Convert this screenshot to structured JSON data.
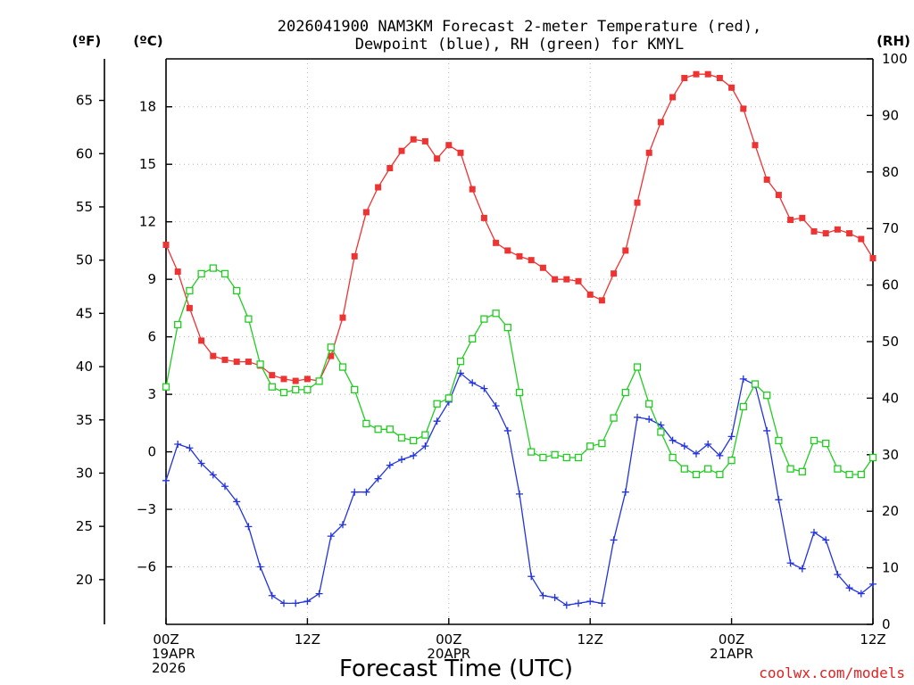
{
  "chart_data": {
    "type": "line",
    "title_line1": "2026041900 NAM3KM Forecast 2-meter Temperature (red),",
    "title_line2": "Dewpoint (blue), RH (green) for KMYL",
    "xlabel": "Forecast Time (UTC)",
    "credit": "coolwx.com/models",
    "units": {
      "fahrenheit": "(ºF)",
      "celsius": "(ºC)",
      "rh": "(RH)"
    },
    "x_unit": "forecast hour",
    "xlim": [
      0,
      60
    ],
    "ylim_celsius": [
      -9,
      20.5
    ],
    "ylim_rh": [
      0,
      100
    ],
    "x_ticks": [
      {
        "x": 0,
        "lines": [
          "00Z",
          "19APR",
          "2026"
        ]
      },
      {
        "x": 12,
        "lines": [
          "12Z"
        ]
      },
      {
        "x": 24,
        "lines": [
          "00Z",
          "20APR"
        ]
      },
      {
        "x": 36,
        "lines": [
          "12Z"
        ]
      },
      {
        "x": 48,
        "lines": [
          "00Z",
          "21APR"
        ]
      },
      {
        "x": 60,
        "lines": [
          "12Z"
        ]
      }
    ],
    "celsius_ticks": [
      -6,
      -3,
      0,
      3,
      6,
      9,
      12,
      15,
      18
    ],
    "celsius_tick_labels": [
      "−6",
      "−3",
      "0",
      "3",
      "6",
      "9",
      "12",
      "15",
      "18"
    ],
    "fahrenheit_ticks": [
      20,
      25,
      30,
      35,
      40,
      45,
      50,
      55,
      60,
      65
    ],
    "fahrenheit_tick_labels": [
      "20",
      "25",
      "30",
      "35",
      "40",
      "45",
      "50",
      "55",
      "60",
      "65"
    ],
    "rh_ticks": [
      0,
      10,
      20,
      30,
      40,
      50,
      60,
      70,
      80,
      90,
      100
    ],
    "rh_tick_labels": [
      "0",
      "10",
      "20",
      "30",
      "40",
      "50",
      "60",
      "70",
      "80",
      "90",
      "100"
    ],
    "series": [
      {
        "name": "2-meter Temperature (°C)",
        "color": "#ee3333",
        "axis": "celsius",
        "marker": "filled-square",
        "x": [
          0,
          1,
          2,
          3,
          4,
          5,
          6,
          7,
          8,
          9,
          10,
          11,
          12,
          13,
          14,
          15,
          16,
          17,
          18,
          19,
          20,
          21,
          22,
          23,
          24,
          25,
          26,
          27,
          28,
          29,
          30,
          31,
          32,
          33,
          34,
          35,
          36,
          37,
          38,
          39,
          40,
          41,
          42,
          43,
          44,
          45,
          46,
          47,
          48,
          49,
          50,
          51,
          52,
          53,
          54,
          55,
          56,
          57,
          58,
          59,
          60
        ],
        "values": [
          10.8,
          9.4,
          7.5,
          5.8,
          5.0,
          4.8,
          4.7,
          4.7,
          4.5,
          4.0,
          3.8,
          3.7,
          3.8,
          3.7,
          5.0,
          7.0,
          10.2,
          12.5,
          13.8,
          14.8,
          15.7,
          16.3,
          16.2,
          15.3,
          16.0,
          15.6,
          13.7,
          12.2,
          10.9,
          10.5,
          10.2,
          10.0,
          9.6,
          9.0,
          9.0,
          8.9,
          8.2,
          7.9,
          9.3,
          10.5,
          13.0,
          15.6,
          17.2,
          18.5,
          19.5,
          19.7,
          19.7,
          19.5,
          19.0,
          17.9,
          16.0,
          14.2,
          13.4,
          12.1,
          12.2,
          11.5,
          11.4,
          11.6,
          11.4,
          11.1,
          10.1
        ]
      },
      {
        "name": "Dewpoint (°C)",
        "color": "#2233dd",
        "axis": "celsius",
        "marker": "plus",
        "x": [
          0,
          1,
          2,
          3,
          4,
          5,
          6,
          7,
          8,
          9,
          10,
          11,
          12,
          13,
          14,
          15,
          16,
          17,
          18,
          19,
          20,
          21,
          22,
          23,
          24,
          25,
          26,
          27,
          28,
          29,
          30,
          31,
          32,
          33,
          34,
          35,
          36,
          37,
          38,
          39,
          40,
          41,
          42,
          43,
          44,
          45,
          46,
          47,
          48,
          49,
          50,
          51,
          52,
          53,
          54,
          55,
          56,
          57,
          58,
          59,
          60
        ],
        "values": [
          -1.5,
          0.4,
          0.2,
          -0.6,
          -1.2,
          -1.8,
          -2.6,
          -3.9,
          -6.0,
          -7.5,
          -7.9,
          -7.9,
          -7.8,
          -7.4,
          -4.4,
          -3.8,
          -2.1,
          -2.1,
          -1.4,
          -0.7,
          -0.4,
          -0.2,
          0.3,
          1.6,
          2.6,
          4.1,
          3.6,
          3.3,
          2.4,
          1.1,
          -2.2,
          -6.5,
          -7.5,
          -7.6,
          -8.0,
          -7.9,
          -7.8,
          -7.9,
          -4.6,
          -2.1,
          1.8,
          1.7,
          1.4,
          0.6,
          0.3,
          -0.1,
          0.4,
          -0.2,
          0.8,
          3.8,
          3.5,
          1.1,
          -2.5,
          -5.8,
          -6.1,
          -4.2,
          -4.6,
          -6.4,
          -7.1,
          -7.4,
          -6.9
        ]
      },
      {
        "name": "RH (%)",
        "color": "#22cc22",
        "axis": "rh",
        "marker": "open-square",
        "x": [
          0,
          1,
          2,
          3,
          4,
          5,
          6,
          7,
          8,
          9,
          10,
          11,
          12,
          13,
          14,
          15,
          16,
          17,
          18,
          19,
          20,
          21,
          22,
          23,
          24,
          25,
          26,
          27,
          28,
          29,
          30,
          31,
          32,
          33,
          34,
          35,
          36,
          37,
          38,
          39,
          40,
          41,
          42,
          43,
          44,
          45,
          46,
          47,
          48,
          49,
          50,
          51,
          52,
          53,
          54,
          55,
          56,
          57,
          58,
          59,
          60
        ],
        "values": [
          42,
          53,
          59,
          62,
          63,
          62,
          59,
          54,
          46,
          42,
          41,
          41.5,
          41.5,
          43,
          49,
          45.5,
          41.5,
          35.5,
          34.5,
          34.5,
          33,
          32.5,
          33.5,
          39,
          40,
          46.5,
          50.5,
          54,
          55,
          52.5,
          41,
          30.5,
          29.5,
          30,
          29.5,
          29.5,
          31.5,
          32,
          36.5,
          41,
          45.5,
          39,
          34,
          29.5,
          27.5,
          26.5,
          27.5,
          26.5,
          29,
          38.5,
          42.5,
          40.5,
          32.5,
          27.5,
          27,
          32.5,
          32,
          27.5,
          26.5,
          26.5,
          29.5
        ]
      }
    ]
  }
}
